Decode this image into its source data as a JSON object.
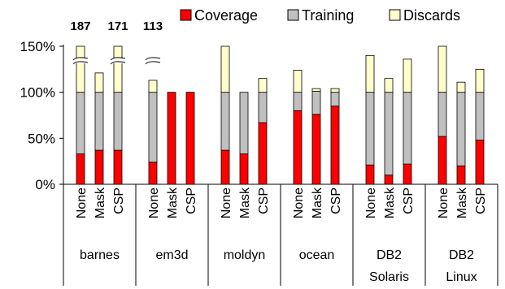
{
  "chart_data": {
    "type": "bar",
    "stacked": true,
    "title": "",
    "xlabel": "",
    "ylabel": "",
    "ylim": [
      0,
      150
    ],
    "yticks": [
      "0%",
      "50%",
      "100%",
      "150%"
    ],
    "grid": false,
    "legend_position": "top",
    "legend": [
      {
        "name": "Coverage",
        "color": "#ff0000"
      },
      {
        "name": "Training",
        "color": "#c0c0c0"
      },
      {
        "name": "Discards",
        "color": "#ffffcc"
      }
    ],
    "groups": [
      {
        "label": [
          "barnes"
        ],
        "bars": [
          {
            "label": "None",
            "coverage": 33,
            "training": 67,
            "discards": 87,
            "overflow": "187"
          },
          {
            "label": "Mask",
            "coverage": 37,
            "training": 63,
            "discards": 21
          },
          {
            "label": "CSP",
            "coverage": 37,
            "training": 63,
            "discards": 71,
            "overflow": "171"
          }
        ]
      },
      {
        "label": [
          "em3d"
        ],
        "bars": [
          {
            "label": "None",
            "coverage": 24,
            "training": 76,
            "discards": 13,
            "overflow": "113"
          },
          {
            "label": "Mask",
            "coverage": 100,
            "training": 0,
            "discards": 0
          },
          {
            "label": "CSP",
            "coverage": 100,
            "training": 0,
            "discards": 0
          }
        ]
      },
      {
        "label": [
          "moldyn"
        ],
        "bars": [
          {
            "label": "None",
            "coverage": 37,
            "training": 63,
            "discards": 53
          },
          {
            "label": "Mask",
            "coverage": 33,
            "training": 67,
            "discards": 0
          },
          {
            "label": "CSP",
            "coverage": 67,
            "training": 33,
            "discards": 15
          }
        ]
      },
      {
        "label": [
          "ocean"
        ],
        "bars": [
          {
            "label": "None",
            "coverage": 80,
            "training": 20,
            "discards": 24
          },
          {
            "label": "Mask",
            "coverage": 76,
            "training": 25,
            "discards": 3
          },
          {
            "label": "CSP",
            "coverage": 85,
            "training": 15,
            "discards": 4
          }
        ]
      },
      {
        "label": [
          "DB2",
          "Solaris"
        ],
        "bars": [
          {
            "label": "None",
            "coverage": 21,
            "training": 79,
            "discards": 40
          },
          {
            "label": "Mask",
            "coverage": 10,
            "training": 90,
            "discards": 15
          },
          {
            "label": "CSP",
            "coverage": 22,
            "training": 78,
            "discards": 36
          }
        ]
      },
      {
        "label": [
          "DB2",
          "Linux"
        ],
        "bars": [
          {
            "label": "None",
            "coverage": 52,
            "training": 48,
            "discards": 55
          },
          {
            "label": "Mask",
            "coverage": 20,
            "training": 80,
            "discards": 11
          },
          {
            "label": "CSP",
            "coverage": 48,
            "training": 52,
            "discards": 25
          }
        ]
      }
    ]
  }
}
